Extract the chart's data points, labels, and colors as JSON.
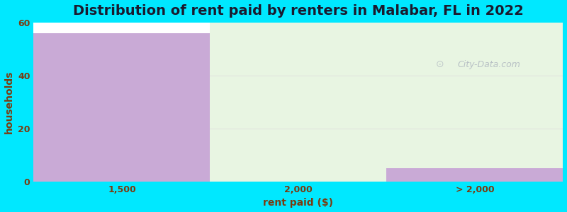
{
  "title": "Distribution of rent paid by renters in Malabar, FL in 2022",
  "xlabel": "rent paid ($)",
  "ylabel": "households",
  "categories": [
    "1,500",
    "2,000",
    "> 2,000"
  ],
  "values": [
    56,
    0,
    5
  ],
  "bar_color": "#c9aad6",
  "background_color": "#00e8ff",
  "plot_bg_left": "#ffffff",
  "plot_bg_right": "#e8f5e2",
  "ylim": [
    0,
    60
  ],
  "yticks": [
    0,
    20,
    40,
    60
  ],
  "title_fontsize": 14,
  "axis_label_fontsize": 10,
  "tick_label_color": "#7a3b10",
  "axis_label_color": "#7a3b10",
  "title_color": "#1a1a2e",
  "watermark_color": "#b0b8c0"
}
